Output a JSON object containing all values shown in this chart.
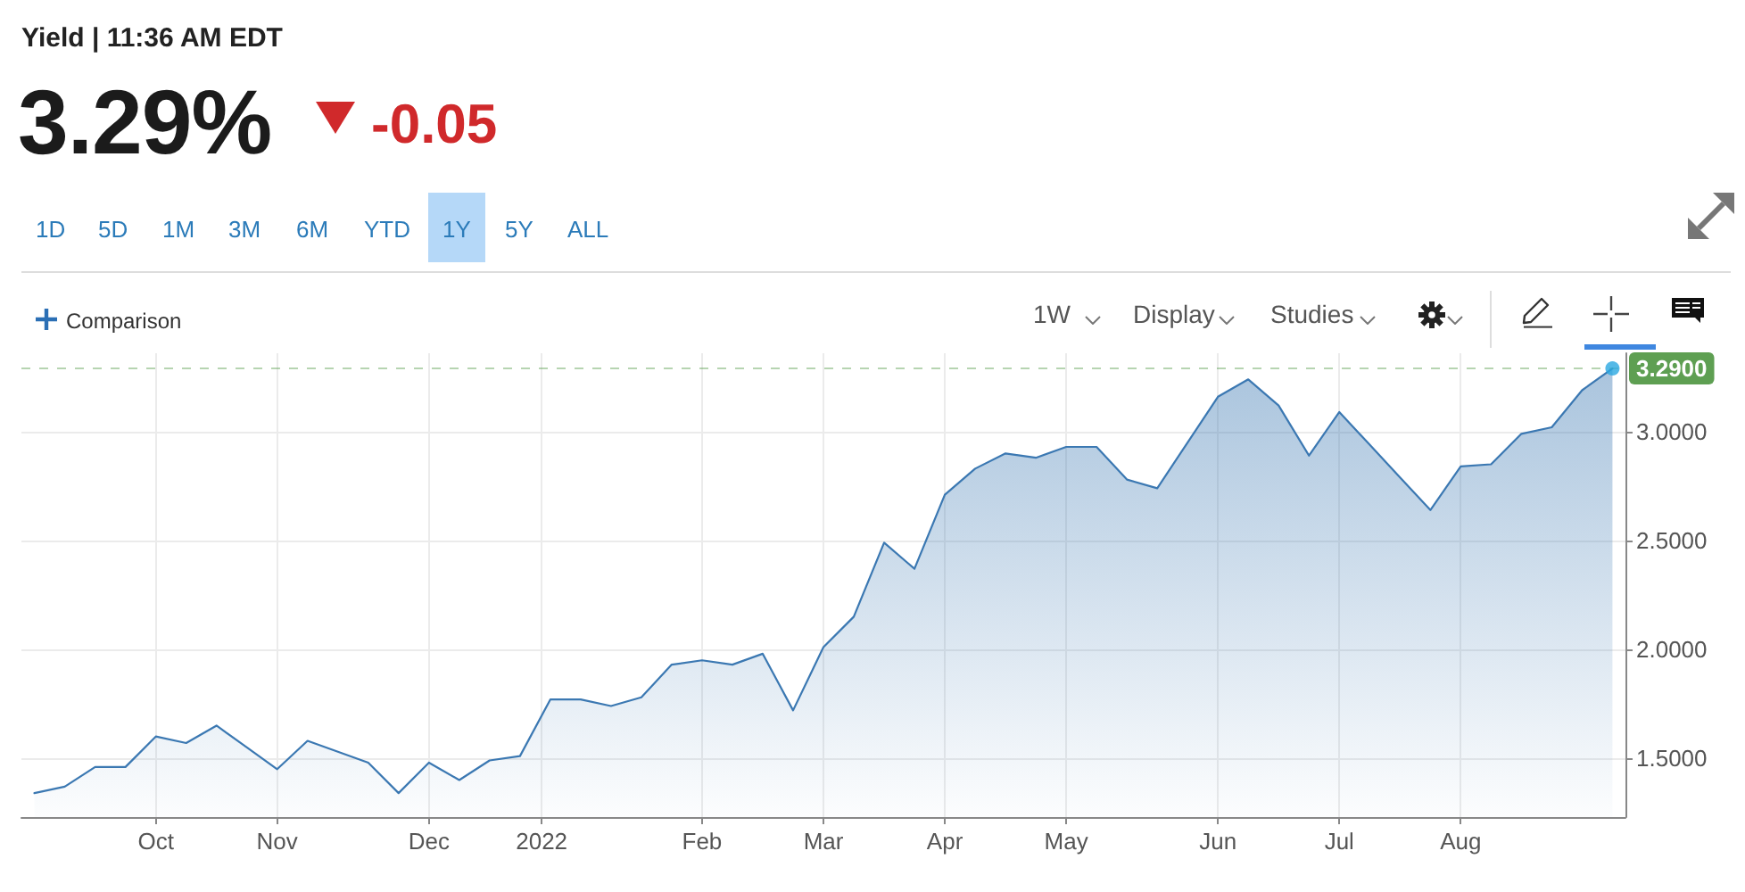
{
  "chart_data": {
    "type": "area",
    "title": "Yield | 11:36 AM EDT",
    "annotations": [
      "3.29%",
      "-0.05",
      "1D",
      "5D",
      "1M",
      "3M",
      "6M",
      "YTD",
      "1Y",
      "5Y",
      "ALL",
      "Comparison",
      "1W",
      "Display",
      "Studies"
    ],
    "x": [
      "2021-09-06",
      "2021-09-13",
      "2021-09-20",
      "2021-09-27",
      "2021-10-04",
      "2021-10-11",
      "2021-10-18",
      "2021-10-25",
      "2021-11-01",
      "2021-11-08",
      "2021-11-15",
      "2021-11-22",
      "2021-11-29",
      "2021-12-06",
      "2021-12-13",
      "2021-12-20",
      "2021-12-27",
      "2022-01-03",
      "2022-01-10",
      "2022-01-17",
      "2022-01-24",
      "2022-01-31",
      "2022-02-07",
      "2022-02-14",
      "2022-02-21",
      "2022-02-28",
      "2022-03-07",
      "2022-03-14",
      "2022-03-21",
      "2022-03-28",
      "2022-04-04",
      "2022-04-11",
      "2022-04-18",
      "2022-04-25",
      "2022-05-02",
      "2022-05-09",
      "2022-05-16",
      "2022-05-23",
      "2022-05-30",
      "2022-06-06",
      "2022-06-13",
      "2022-06-20",
      "2022-06-27",
      "2022-07-04",
      "2022-07-11",
      "2022-07-18",
      "2022-07-25",
      "2022-08-01",
      "2022-08-08",
      "2022-08-15",
      "2022-08-22",
      "2022-08-29",
      "2022-09-05"
    ],
    "series": [
      {
        "color": "#3b78b2",
        "values": [
          1.34,
          1.37,
          1.46,
          1.46,
          1.6,
          1.57,
          1.65,
          1.55,
          1.45,
          1.58,
          1.53,
          1.48,
          1.34,
          1.48,
          1.4,
          1.49,
          1.51,
          1.77,
          1.77,
          1.74,
          1.78,
          1.93,
          1.95,
          1.93,
          1.98,
          1.72,
          2.01,
          2.15,
          2.49,
          2.37,
          2.71,
          2.83,
          2.9,
          2.88,
          2.93,
          2.93,
          2.78,
          2.74,
          2.95,
          3.16,
          3.24,
          3.12,
          2.89,
          3.09,
          2.94,
          2.79,
          2.64,
          2.84,
          2.85,
          2.99,
          3.02,
          3.19,
          3.29
        ]
      },
      {
        "type": "scatter",
        "color": "#2aa7e1",
        "marker": "circle",
        "x": [
          "2022-09-05"
        ],
        "values": [
          3.29
        ]
      }
    ],
    "xlim": [
      "2021-09-03",
      "2022-09-08"
    ],
    "xticks": [
      {
        "value": "2021-10-04",
        "label": "Oct"
      },
      {
        "value": "2021-11-01",
        "label": "Nov"
      },
      {
        "value": "2021-12-06",
        "label": "Dec"
      },
      {
        "value": "2022-01-01",
        "label": "2022"
      },
      {
        "value": "2022-02-07",
        "label": "Feb"
      },
      {
        "value": "2022-03-07",
        "label": "Mar"
      },
      {
        "value": "2022-04-04",
        "label": "Apr"
      },
      {
        "value": "2022-05-02",
        "label": "May"
      },
      {
        "value": "2022-06-06",
        "label": "Jun"
      },
      {
        "value": "2022-07-04",
        "label": "Jul"
      },
      {
        "value": "2022-08-01",
        "label": "Aug"
      }
    ],
    "ylim": [
      1.23,
      3.36
    ],
    "yticks": [
      {
        "value": 1.5,
        "label": "1.5000"
      },
      {
        "value": 2,
        "label": "2.0000"
      },
      {
        "value": 2.5,
        "label": "2.5000"
      },
      {
        "value": 3,
        "label": "3.0000"
      }
    ],
    "ref_lines": [
      {
        "axis": "y",
        "value": 3.29,
        "label": "3.2900",
        "color": "#5e9f52",
        "line_style": "dashed"
      }
    ],
    "grid": true,
    "marker": "none"
  }
}
